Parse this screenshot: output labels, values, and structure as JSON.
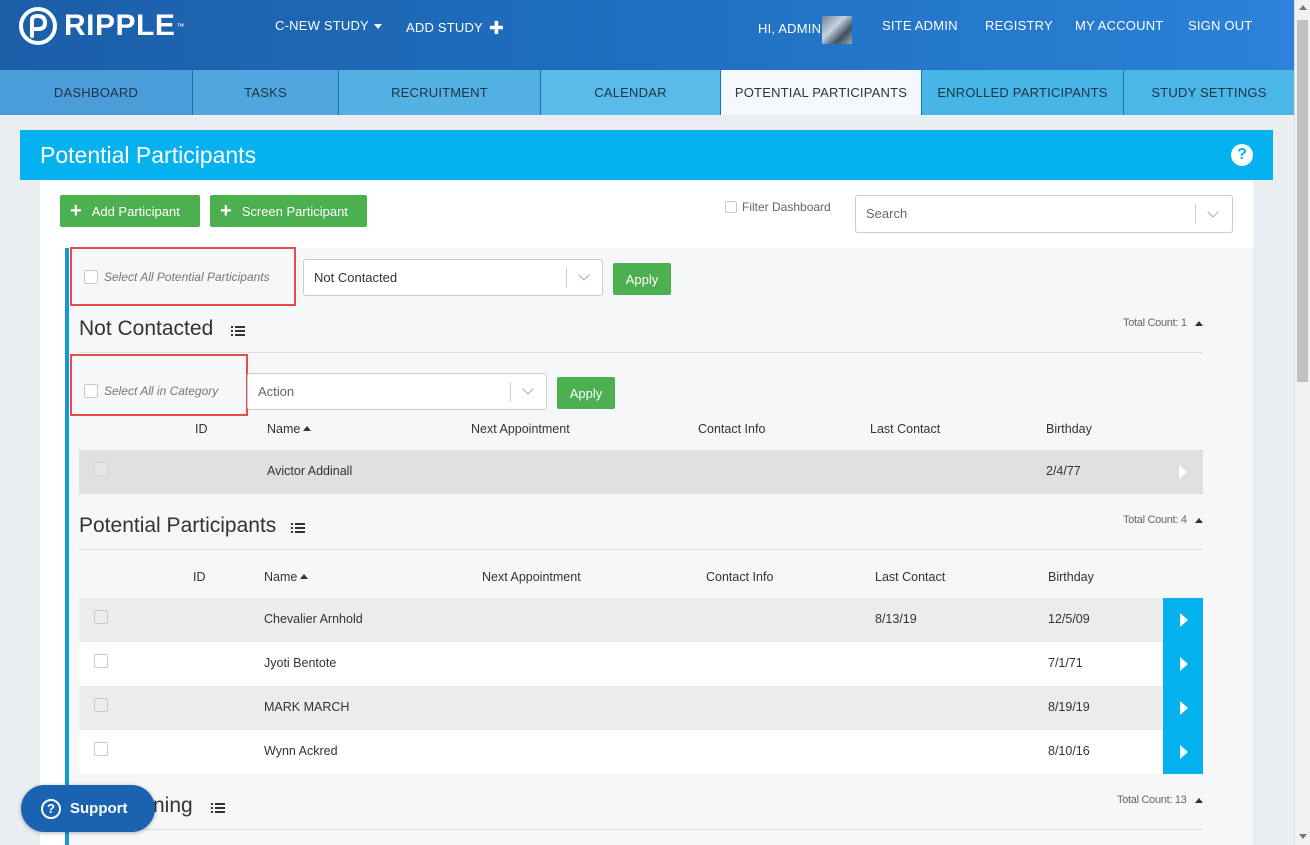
{
  "brand": {
    "name": "RIPPLE",
    "tm": "™"
  },
  "topnav": {
    "study_selector": "C-NEW STUDY",
    "add_study": "ADD STUDY",
    "greeting": "HI, ADMIN",
    "site_admin": "SITE ADMIN",
    "registry": "REGISTRY",
    "my_account": "MY ACCOUNT",
    "sign_out": "SIGN OUT"
  },
  "tabs": [
    {
      "label": "DASHBOARD"
    },
    {
      "label": "TASKS"
    },
    {
      "label": "RECRUITMENT"
    },
    {
      "label": "CALENDAR"
    },
    {
      "label": "POTENTIAL PARTICIPANTS",
      "active": true
    },
    {
      "label": "ENROLLED PARTICIPANTS"
    },
    {
      "label": "STUDY SETTINGS"
    }
  ],
  "page": {
    "title": "Potential Participants"
  },
  "toolbar": {
    "add_participant": "Add Participant",
    "screen_participant": "Screen Participant",
    "filter_dashboard": "Filter Dashboard",
    "search_placeholder": "Search"
  },
  "bulk": {
    "select_all_label": "Select All Potential Participants",
    "status_value": "Not Contacted",
    "apply": "Apply"
  },
  "sections": {
    "not_contacted": {
      "title": "Not Contacted",
      "total_count": "Total Count: 1",
      "select_all_label": "Select All in Category",
      "action_placeholder": "Action",
      "apply": "Apply",
      "columns": {
        "id": "ID",
        "name": "Name",
        "next_appt": "Next Appointment",
        "contact": "Contact Info",
        "last_contact": "Last Contact",
        "birthday": "Birthday"
      },
      "rows": [
        {
          "id": "",
          "name": "Avictor Addinall",
          "next_appt": "",
          "contact": "",
          "last_contact": "",
          "birthday": "2/4/77"
        }
      ]
    },
    "potential": {
      "title": "Potential Participants",
      "total_count": "Total Count: 4",
      "columns": {
        "id": "ID",
        "name": "Name",
        "next_appt": "Next Appointment",
        "contact": "Contact Info",
        "last_contact": "Last Contact",
        "birthday": "Birthday"
      },
      "rows": [
        {
          "id": "",
          "name": "Chevalier Arnhold",
          "next_appt": "",
          "contact": "",
          "last_contact": "8/13/19",
          "birthday": "12/5/09"
        },
        {
          "id": "",
          "name": "Jyoti Bentote",
          "next_appt": "",
          "contact": "",
          "last_contact": "",
          "birthday": "7/1/71"
        },
        {
          "id": "",
          "name": "MARK MARCH",
          "next_appt": "",
          "contact": "",
          "last_contact": "",
          "birthday": "8/19/19"
        },
        {
          "id": "",
          "name": "Wynn Ackred",
          "next_appt": "",
          "contact": "",
          "last_contact": "",
          "birthday": "8/10/16"
        }
      ]
    },
    "screening": {
      "title_visible": "ning",
      "total_count": "Total Count: 13"
    }
  },
  "support": {
    "label": "Support"
  },
  "colors": {
    "accent": "#05b2ef",
    "green": "#4caf50",
    "nav": "#1f6fc0",
    "highlight_box": "#e74c4c"
  }
}
